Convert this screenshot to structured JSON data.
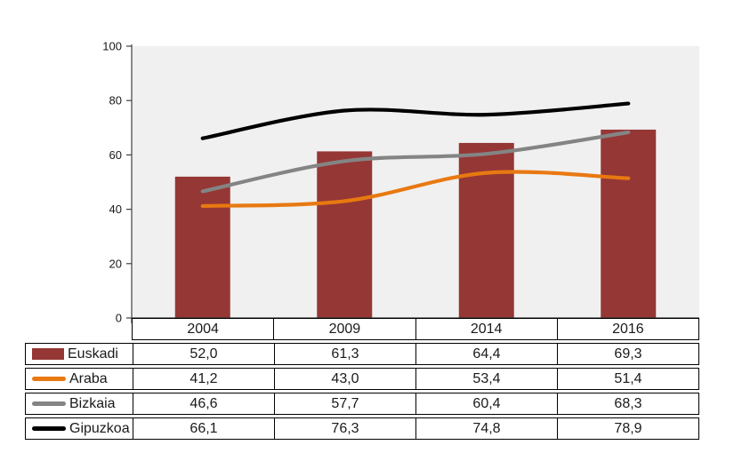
{
  "chart_data": {
    "type": "combo",
    "categories": [
      "2004",
      "2009",
      "2014",
      "2016"
    ],
    "series": [
      {
        "name": "Euskadi",
        "type": "bar",
        "color": "#953735",
        "values": [
          52.0,
          61.3,
          64.4,
          69.3
        ]
      },
      {
        "name": "Araba",
        "type": "line",
        "color": "#E87911",
        "values": [
          41.2,
          43.0,
          53.4,
          51.4
        ]
      },
      {
        "name": "Bizkaia",
        "type": "line",
        "color": "#848484",
        "values": [
          46.6,
          57.7,
          60.4,
          68.3
        ]
      },
      {
        "name": "Gipuzkoa",
        "type": "line",
        "color": "#000000",
        "values": [
          66.1,
          76.3,
          74.8,
          78.9
        ]
      }
    ],
    "title": "",
    "xlabel": "",
    "ylabel": "",
    "ylim": [
      0,
      100
    ],
    "y_ticks": [
      0,
      20,
      40,
      60,
      80,
      100
    ],
    "grid": false,
    "smoothed_lines": true,
    "legend_position": "table-left",
    "number_format": "comma-decimal",
    "plot_bg_color": "#F0F0F0",
    "axis_color": "#404040"
  },
  "table": {
    "header": [
      "2004",
      "2009",
      "2014",
      "2016"
    ],
    "rows": [
      {
        "label": "Euskadi",
        "values": [
          "52,0",
          "61,3",
          "64,4",
          "69,3"
        ]
      },
      {
        "label": "Araba",
        "values": [
          "41,2",
          "43,0",
          "53,4",
          "51,4"
        ]
      },
      {
        "label": "Bizkaia",
        "values": [
          "46,6",
          "57,7",
          "60,4",
          "68,3"
        ]
      },
      {
        "label": "Gipuzkoa",
        "values": [
          "66,1",
          "76,3",
          "74,8",
          "78,9"
        ]
      }
    ]
  },
  "y_axis_labels": [
    "0",
    "20",
    "40",
    "60",
    "80",
    "100"
  ]
}
